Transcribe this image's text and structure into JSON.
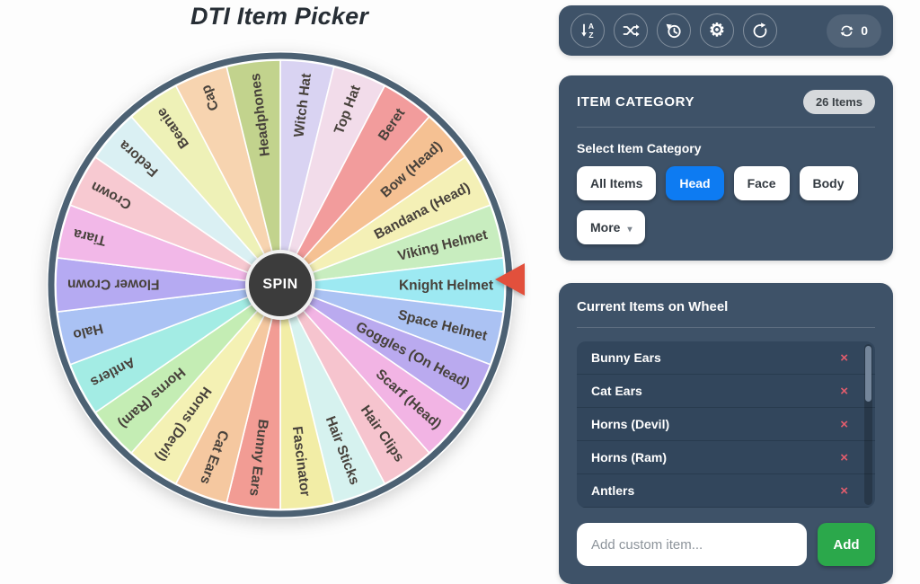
{
  "page": {
    "title": "DTI Item Picker"
  },
  "toolbar": {
    "buttons": [
      {
        "name": "sort",
        "icon": "sort-alpha-icon"
      },
      {
        "name": "shuffle",
        "icon": "shuffle-icon"
      },
      {
        "name": "history",
        "icon": "history-icon"
      },
      {
        "name": "settings",
        "icon": "gear-icon"
      },
      {
        "name": "rotate",
        "icon": "rotate-right-icon"
      }
    ],
    "counter": {
      "icon": "sync-icon",
      "value": "0"
    }
  },
  "category_panel": {
    "title": "ITEM CATEGORY",
    "badge": "26 Items",
    "select_label": "Select Item Category",
    "options": [
      {
        "label": "All Items",
        "active": false
      },
      {
        "label": "Head",
        "active": true
      },
      {
        "label": "Face",
        "active": false
      },
      {
        "label": "Body",
        "active": false
      }
    ],
    "more_label": "More",
    "active_color": "#0d7bf2"
  },
  "items_panel": {
    "title": "Current Items on Wheel",
    "items": [
      "Bunny Ears",
      "Cat Ears",
      "Horns (Devil)",
      "Horns (Ram)",
      "Antlers"
    ],
    "remove_glyph": "×",
    "input_placeholder": "Add custom item...",
    "add_label": "Add",
    "add_color": "#2ba84b"
  },
  "wheel": {
    "spin_label": "SPIN",
    "pointer_at": "Knight Helmet",
    "pointer_color": "#e2503c",
    "ring_color": "#4c6173",
    "label_color": "#47413b",
    "segments": [
      {
        "label": "Witch Hat",
        "color": "#d9d3f2"
      },
      {
        "label": "Top Hat",
        "color": "#f2dcea"
      },
      {
        "label": "Beret",
        "color": "#f29c9c"
      },
      {
        "label": "Bow (Head)",
        "color": "#f5c193"
      },
      {
        "label": "Bandana (Head)",
        "color": "#f4f0b6"
      },
      {
        "label": "Viking Helmet",
        "color": "#c8edbf"
      },
      {
        "label": "Knight Helmet",
        "color": "#9de9f2"
      },
      {
        "label": "Space Helmet",
        "color": "#abc2f3"
      },
      {
        "label": "Goggles (On Head)",
        "color": "#baaaef"
      },
      {
        "label": "Scarf (Head)",
        "color": "#f2b4e4"
      },
      {
        "label": "Hair Clips",
        "color": "#f6c4ce"
      },
      {
        "label": "Hair Sticks",
        "color": "#d6f2ef"
      },
      {
        "label": "Fascinator",
        "color": "#f2eda6"
      },
      {
        "label": "Bunny Ears",
        "color": "#f29c94"
      },
      {
        "label": "Cat Ears",
        "color": "#f5c8a0"
      },
      {
        "label": "Horns (Devil)",
        "color": "#f4f1b4"
      },
      {
        "label": "Horns (Ram)",
        "color": "#c4edb4"
      },
      {
        "label": "Antlers",
        "color": "#a3ece4"
      },
      {
        "label": "Halo",
        "color": "#aac2f4"
      },
      {
        "label": "Flower Crown",
        "color": "#b5aaf2"
      },
      {
        "label": "Tiara",
        "color": "#f2b8e8"
      },
      {
        "label": "Crown",
        "color": "#f7c9d1"
      },
      {
        "label": "Fedora",
        "color": "#daf0f3"
      },
      {
        "label": "Beanie",
        "color": "#eef1b7"
      },
      {
        "label": "Cap",
        "color": "#f7d4b0"
      },
      {
        "label": "Headphones",
        "color": "#c2d38d"
      }
    ]
  }
}
